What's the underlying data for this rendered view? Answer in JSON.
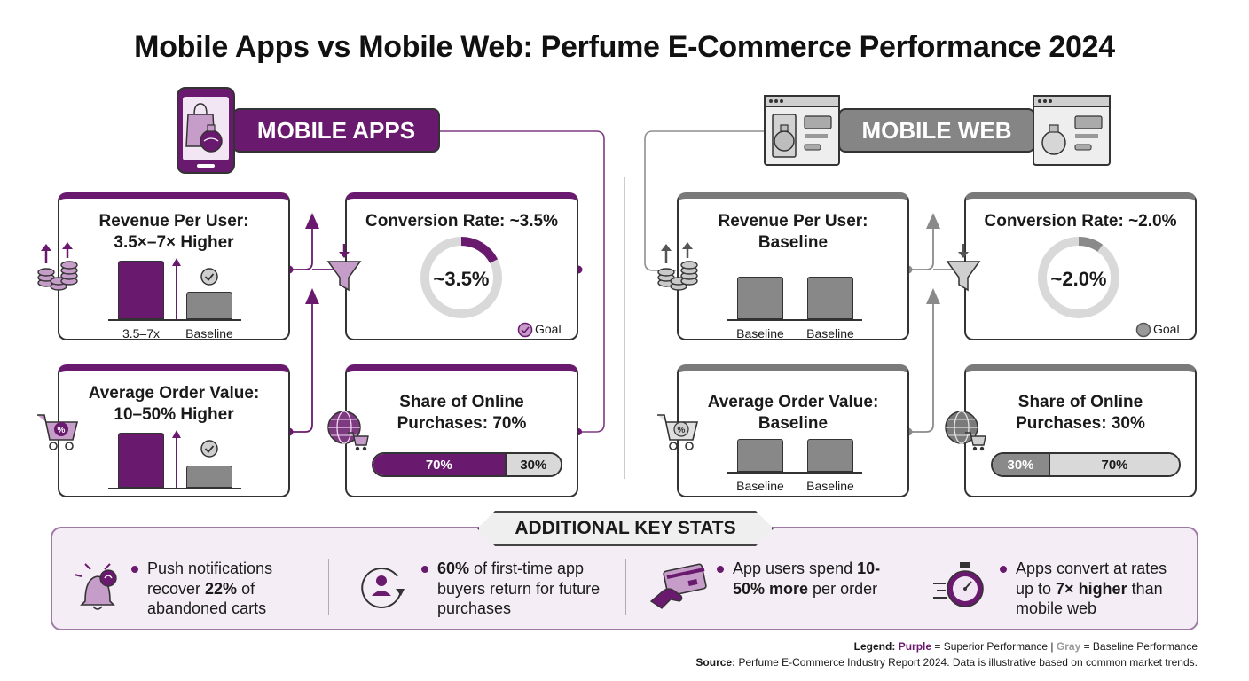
{
  "title": "Mobile Apps vs Mobile Web: Perfume E-Commerce Performance 2024",
  "colors": {
    "purple": "#6a1a6e",
    "light_purple": "#c59dc8",
    "gray": "#858585",
    "light_gray": "#d9d9d9"
  },
  "mobile_apps": {
    "header": "MOBILE APPS",
    "revenue": {
      "title_line1": "Revenue Per User:",
      "title_line2": "3.5×–7× Higher",
      "label_left": "3.5–7x",
      "label_right": "Baseline"
    },
    "conversion": {
      "title": "Conversion Rate: ~3.5%",
      "value": 3.5,
      "center_label": "~3.5%",
      "goal_label": "Goal"
    },
    "aov": {
      "title_line1": "Average Order Value:",
      "title_line2": "10–50% Higher"
    },
    "share": {
      "title_line1": "Share of Online",
      "title_line2": "Purchases: 70%",
      "primary_pct": 70,
      "primary_label": "70%",
      "secondary_label": "30%"
    }
  },
  "mobile_web": {
    "header": "MOBILE WEB",
    "revenue": {
      "title_line1": "Revenue Per User:",
      "title_line2": "Baseline",
      "label_left": "Baseline",
      "label_right": "Baseline"
    },
    "conversion": {
      "title": "Conversion Rate: ~2.0%",
      "value": 2.0,
      "center_label": "~2.0%",
      "goal_label": "Goal"
    },
    "aov": {
      "title_line1": "Average Order Value:",
      "title_line2": "Baseline",
      "label_left": "Baseline",
      "label_right": "Baseline"
    },
    "share": {
      "title_line1": "Share of Online",
      "title_line2": "Purchases: 30%",
      "primary_pct": 30,
      "primary_label": "30%",
      "secondary_label": "70%"
    }
  },
  "key_stats": {
    "header": "ADDITIONAL KEY STATS",
    "items": [
      {
        "icon": "bell-icon",
        "pre": "Push notifications recover ",
        "bold": "22%",
        "post": " of abandoned carts"
      },
      {
        "icon": "returning-user-icon",
        "pre": "",
        "bold": "60%",
        "post": " of first-time app buyers return for future purchases"
      },
      {
        "icon": "credit-card-hand-icon",
        "pre": "App users spend ",
        "bold": "10-50% more",
        "post": " per order"
      },
      {
        "icon": "stopwatch-icon",
        "pre": "Apps convert at rates up to ",
        "bold": "7× higher",
        "post": " than mobile web"
      }
    ]
  },
  "footer": {
    "legend_label": "Legend:",
    "legend_purple": "Purple",
    "legend_purple_desc": " = Superior Performance | ",
    "legend_gray": "Gray",
    "legend_gray_desc": " = Baseline Performance",
    "source_label": "Source:",
    "source_text": " Perfume E-Commerce Industry Report 2024. Data is illustrative based on common market trends."
  }
}
